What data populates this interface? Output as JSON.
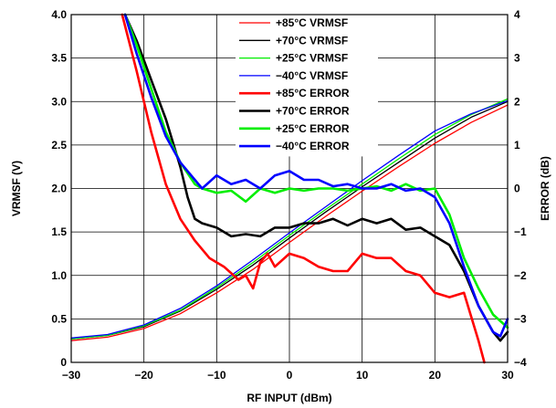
{
  "chart_data": {
    "type": "line",
    "xlabel": "RF INPUT (dBm)",
    "ylabel": "VRMSF (V)",
    "y2label": "ERROR (dB)",
    "xlim": [
      -30,
      30
    ],
    "ylim": [
      0,
      4.0
    ],
    "y2lim": [
      -4,
      4
    ],
    "x_ticks": [
      -30,
      -20,
      -10,
      0,
      10,
      20,
      30
    ],
    "x_tick_labels": [
      "−30",
      "−20",
      "−10",
      "0",
      "10",
      "20",
      "30"
    ],
    "y_ticks": [
      0,
      0.5,
      1.0,
      1.5,
      2.0,
      2.5,
      3.0,
      3.5,
      4.0
    ],
    "y_tick_labels": [
      "0",
      "0.5",
      "1.0",
      "1.5",
      "2.0",
      "2.5",
      "3.0",
      "3.5",
      "4.0"
    ],
    "y2_ticks": [
      -4,
      -3,
      -2,
      -1,
      0,
      1,
      2,
      3,
      4
    ],
    "y2_tick_labels": [
      "−4",
      "−3",
      "−2",
      "−1",
      "0",
      "1",
      "2",
      "3",
      "4"
    ],
    "grid": true,
    "legend_position": "top-center",
    "series": [
      {
        "name": "+85°C VRMSF",
        "axis": "left",
        "color": "#ff0000",
        "width": 1.3,
        "points": [
          [
            -30,
            0.25
          ],
          [
            -25,
            0.29
          ],
          [
            -20,
            0.39
          ],
          [
            -15,
            0.56
          ],
          [
            -10,
            0.8
          ],
          [
            -5,
            1.07
          ],
          [
            0,
            1.38
          ],
          [
            5,
            1.68
          ],
          [
            10,
            1.97
          ],
          [
            15,
            2.25
          ],
          [
            20,
            2.52
          ],
          [
            25,
            2.76
          ],
          [
            30,
            2.96
          ]
        ]
      },
      {
        "name": "+70°C VRMSF",
        "axis": "left",
        "color": "#000000",
        "width": 1.3,
        "points": [
          [
            -30,
            0.27
          ],
          [
            -25,
            0.31
          ],
          [
            -20,
            0.41
          ],
          [
            -15,
            0.59
          ],
          [
            -10,
            0.84
          ],
          [
            -5,
            1.12
          ],
          [
            0,
            1.43
          ],
          [
            5,
            1.73
          ],
          [
            10,
            2.02
          ],
          [
            15,
            2.3
          ],
          [
            20,
            2.58
          ],
          [
            25,
            2.82
          ],
          [
            30,
            3.0
          ]
        ]
      },
      {
        "name": "+25°C VRMSF",
        "axis": "left",
        "color": "#00ee00",
        "width": 1.3,
        "points": [
          [
            -30,
            0.27
          ],
          [
            -25,
            0.31
          ],
          [
            -20,
            0.42
          ],
          [
            -15,
            0.6
          ],
          [
            -10,
            0.86
          ],
          [
            -5,
            1.15
          ],
          [
            0,
            1.46
          ],
          [
            5,
            1.76
          ],
          [
            10,
            2.05
          ],
          [
            15,
            2.34
          ],
          [
            20,
            2.62
          ],
          [
            25,
            2.85
          ],
          [
            30,
            3.03
          ]
        ]
      },
      {
        "name": "−40°C VRMSF",
        "axis": "left",
        "color": "#0000ff",
        "width": 1.3,
        "points": [
          [
            -30,
            0.28
          ],
          [
            -25,
            0.32
          ],
          [
            -20,
            0.43
          ],
          [
            -15,
            0.62
          ],
          [
            -10,
            0.88
          ],
          [
            -5,
            1.18
          ],
          [
            0,
            1.49
          ],
          [
            5,
            1.79
          ],
          [
            10,
            2.09
          ],
          [
            15,
            2.38
          ],
          [
            20,
            2.66
          ],
          [
            25,
            2.86
          ],
          [
            30,
            3.01
          ]
        ]
      },
      {
        "name": "+85°C ERROR",
        "axis": "right",
        "color": "#ff0000",
        "width": 2.6,
        "points": [
          [
            -23,
            4.0
          ],
          [
            -21,
            2.7
          ],
          [
            -19,
            1.3
          ],
          [
            -17,
            0.1
          ],
          [
            -15,
            -0.7
          ],
          [
            -13,
            -1.2
          ],
          [
            -11,
            -1.6
          ],
          [
            -9,
            -1.8
          ],
          [
            -7,
            -2.1
          ],
          [
            -6,
            -2.0
          ],
          [
            -5,
            -2.3
          ],
          [
            -4,
            -1.7
          ],
          [
            -3,
            -1.5
          ],
          [
            -2,
            -1.8
          ],
          [
            0,
            -1.5
          ],
          [
            2,
            -1.6
          ],
          [
            4,
            -1.8
          ],
          [
            6,
            -1.9
          ],
          [
            8,
            -1.9
          ],
          [
            10,
            -1.5
          ],
          [
            12,
            -1.6
          ],
          [
            14,
            -1.6
          ],
          [
            16,
            -1.9
          ],
          [
            18,
            -2.0
          ],
          [
            20,
            -2.4
          ],
          [
            22,
            -2.5
          ],
          [
            24,
            -2.4
          ],
          [
            26,
            -3.5
          ],
          [
            26.8,
            -4.0
          ]
        ]
      },
      {
        "name": "+70°C ERROR",
        "axis": "right",
        "color": "#000000",
        "width": 2.6,
        "points": [
          [
            -22.6,
            4.0
          ],
          [
            -21,
            3.4
          ],
          [
            -19,
            2.5
          ],
          [
            -17,
            1.6
          ],
          [
            -15,
            0.5
          ],
          [
            -14,
            -0.2
          ],
          [
            -13,
            -0.7
          ],
          [
            -12,
            -0.8
          ],
          [
            -10,
            -0.9
          ],
          [
            -8,
            -1.1
          ],
          [
            -6,
            -1.05
          ],
          [
            -4,
            -1.1
          ],
          [
            -2,
            -0.9
          ],
          [
            0,
            -0.9
          ],
          [
            2,
            -0.8
          ],
          [
            4,
            -0.8
          ],
          [
            6,
            -0.7
          ],
          [
            8,
            -0.85
          ],
          [
            10,
            -0.7
          ],
          [
            12,
            -0.8
          ],
          [
            14,
            -0.7
          ],
          [
            16,
            -0.95
          ],
          [
            18,
            -0.9
          ],
          [
            20,
            -1.1
          ],
          [
            22,
            -1.3
          ],
          [
            24,
            -1.9
          ],
          [
            26,
            -2.7
          ],
          [
            28,
            -3.3
          ],
          [
            29,
            -3.5
          ],
          [
            30,
            -3.3
          ]
        ]
      },
      {
        "name": "+25°C ERROR",
        "axis": "right",
        "color": "#00ee00",
        "width": 2.6,
        "points": [
          [
            -22.6,
            4.0
          ],
          [
            -21,
            3.3
          ],
          [
            -19,
            2.3
          ],
          [
            -17,
            1.3
          ],
          [
            -15,
            0.6
          ],
          [
            -13,
            0.1
          ],
          [
            -12,
            0.0
          ],
          [
            -10,
            -0.1
          ],
          [
            -8,
            -0.05
          ],
          [
            -6,
            -0.3
          ],
          [
            -4,
            0.0
          ],
          [
            -2,
            -0.1
          ],
          [
            0,
            0.0
          ],
          [
            2,
            -0.05
          ],
          [
            4,
            0.0
          ],
          [
            6,
            0.0
          ],
          [
            8,
            -0.05
          ],
          [
            10,
            0.0
          ],
          [
            12,
            0.05
          ],
          [
            14,
            -0.05
          ],
          [
            16,
            0.1
          ],
          [
            18,
            -0.05
          ],
          [
            20,
            0.0
          ],
          [
            22,
            -0.6
          ],
          [
            24,
            -1.6
          ],
          [
            26,
            -2.3
          ],
          [
            28,
            -2.9
          ],
          [
            30,
            -3.2
          ]
        ]
      },
      {
        "name": "−40°C ERROR",
        "axis": "right",
        "color": "#0000ff",
        "width": 2.6,
        "points": [
          [
            -22.6,
            4.0
          ],
          [
            -21,
            3.1
          ],
          [
            -19,
            2.1
          ],
          [
            -17,
            1.2
          ],
          [
            -15,
            0.6
          ],
          [
            -13,
            0.2
          ],
          [
            -12,
            0.0
          ],
          [
            -10,
            0.3
          ],
          [
            -8,
            0.1
          ],
          [
            -6,
            0.2
          ],
          [
            -4,
            0.0
          ],
          [
            -2,
            0.3
          ],
          [
            0,
            0.4
          ],
          [
            2,
            0.2
          ],
          [
            4,
            0.2
          ],
          [
            6,
            0.05
          ],
          [
            8,
            0.1
          ],
          [
            10,
            0.0
          ],
          [
            12,
            0.0
          ],
          [
            14,
            0.1
          ],
          [
            16,
            -0.05
          ],
          [
            18,
            0.0
          ],
          [
            20,
            -0.2
          ],
          [
            22,
            -0.8
          ],
          [
            24,
            -1.8
          ],
          [
            26,
            -2.7
          ],
          [
            28,
            -3.3
          ],
          [
            29,
            -3.4
          ],
          [
            30,
            -3.0
          ]
        ]
      }
    ]
  }
}
